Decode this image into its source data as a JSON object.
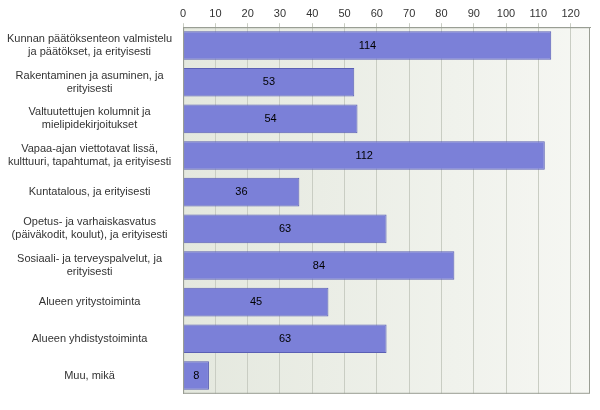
{
  "chart_data": {
    "type": "bar",
    "orientation": "horizontal",
    "categories": [
      "Kunnan päätöksenteon valmistelu ja päätökset, ja erityisesti",
      "Rakentaminen ja asuminen, ja erityisesti",
      "Valtuutettujen kolumnit ja mielipidekirjoitukset",
      "Vapaa-ajan viettotavat lissä, kulttuuri, tapahtumat, ja erityisesti",
      "Kuntatalous, ja erityisesti",
      "Opetus- ja varhaiskasvatus (päiväkodit, koulut), ja erityisesti",
      "Sosiaali- ja terveyspalvelut, ja erityisesti",
      "Alueen yritystoiminta",
      "Alueen yhdistystoiminta",
      "Muu, mikä"
    ],
    "values": [
      114,
      53,
      54,
      112,
      36,
      63,
      84,
      45,
      63,
      8
    ],
    "color": "#7b80d8",
    "xlim": [
      0,
      126
    ],
    "xticks": [
      0,
      10,
      20,
      30,
      40,
      50,
      60,
      70,
      80,
      90,
      100,
      110,
      120
    ],
    "grid": true,
    "data_labels": true
  }
}
